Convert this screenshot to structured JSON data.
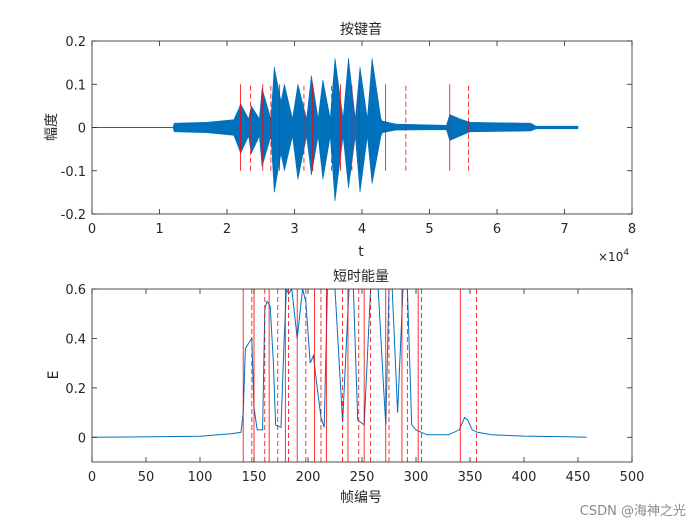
{
  "watermark": "CSDN @海神之光",
  "colors": {
    "signal": "#0072BD",
    "marker": "#FF0000",
    "axis": "#262626"
  },
  "chart_data": [
    {
      "type": "line",
      "title": "按键音",
      "xlabel": "t",
      "ylabel": "幅度",
      "x_exponent_label": "×10",
      "x_exponent_power": "4",
      "xlim": [
        0,
        80000
      ],
      "ylim": [
        -0.2,
        0.2
      ],
      "xticks": [
        0,
        10000,
        20000,
        30000,
        40000,
        50000,
        60000,
        70000,
        80000
      ],
      "xtick_labels": [
        "0",
        "1",
        "2",
        "3",
        "4",
        "5",
        "6",
        "7",
        "8"
      ],
      "yticks": [
        -0.2,
        -0.1,
        0,
        0.1,
        0.2
      ],
      "ytick_labels": [
        "-0.2",
        "-0.1",
        "0",
        "0.1",
        "0.2"
      ],
      "envelope": {
        "x": [
          0,
          12000,
          12200,
          17000,
          21000,
          21800,
          22000,
          23200,
          23600,
          24800,
          25200,
          26500,
          27000,
          28000,
          28500,
          29700,
          30500,
          31800,
          32500,
          33500,
          34200,
          35300,
          36000,
          37200,
          38000,
          39000,
          39700,
          40800,
          41500,
          42800,
          43000,
          45000,
          52500,
          53000,
          54500,
          56000,
          65000,
          65800,
          72000,
          72001
        ],
        "upper": [
          0.0005,
          0.0005,
          0.01,
          0.012,
          0.018,
          0.045,
          0.055,
          0.02,
          0.05,
          0.02,
          0.09,
          0.02,
          0.14,
          0.06,
          0.1,
          0.02,
          0.1,
          0.02,
          0.12,
          0.02,
          0.11,
          0.02,
          0.16,
          0.02,
          0.16,
          0.02,
          0.14,
          0.02,
          0.16,
          0.02,
          0.015,
          0.008,
          0.005,
          0.03,
          0.02,
          0.012,
          0.01,
          0.003,
          0.003,
          0.0
        ],
        "lower": [
          -0.0005,
          -0.0005,
          -0.01,
          -0.012,
          -0.018,
          -0.05,
          -0.06,
          -0.02,
          -0.06,
          -0.02,
          -0.09,
          -0.02,
          -0.15,
          -0.06,
          -0.1,
          -0.02,
          -0.12,
          -0.02,
          -0.11,
          -0.02,
          -0.12,
          -0.02,
          -0.17,
          -0.02,
          -0.14,
          -0.02,
          -0.15,
          -0.02,
          -0.13,
          -0.02,
          -0.012,
          -0.006,
          -0.005,
          -0.03,
          -0.02,
          -0.01,
          -0.008,
          -0.003,
          -0.003,
          0.0
        ]
      },
      "solid_markers_x": [
        22000,
        25300,
        27800,
        32700,
        36800,
        39600,
        43500,
        53000
      ],
      "dashed_markers_x": [
        23500,
        26500,
        31400,
        35500,
        38500,
        41700,
        46500,
        55800
      ],
      "marker_y_range": [
        -0.1,
        0.1
      ]
    },
    {
      "type": "line",
      "title": "短时能量",
      "xlabel": "帧编号",
      "ylabel": "E",
      "xlim": [
        0,
        500
      ],
      "ylim": [
        -0.1,
        0.6
      ],
      "xticks": [
        0,
        50,
        100,
        150,
        200,
        250,
        300,
        350,
        400,
        450,
        500
      ],
      "xtick_labels": [
        "0",
        "50",
        "100",
        "150",
        "200",
        "250",
        "300",
        "350",
        "400",
        "450",
        "500"
      ],
      "yticks": [
        0,
        0.2,
        0.4,
        0.6
      ],
      "ytick_labels": [
        "0",
        "0.2",
        "0.4",
        "0.6"
      ],
      "x": [
        0,
        100,
        130,
        138,
        140,
        142,
        145,
        148,
        150,
        153,
        158,
        160,
        162,
        165,
        168,
        170,
        175,
        178,
        180,
        182,
        185,
        190,
        195,
        198,
        202,
        205,
        208,
        212,
        215,
        218,
        225,
        232,
        238,
        242,
        246,
        252,
        258,
        265,
        270,
        272,
        275,
        278,
        283,
        288,
        292,
        296,
        300,
        305,
        310,
        320,
        330,
        340,
        345,
        348,
        352,
        357,
        370,
        400,
        440,
        458
      ],
      "values": [
        0.0,
        0.004,
        0.015,
        0.02,
        0.1,
        0.36,
        0.38,
        0.4,
        0.12,
        0.03,
        0.03,
        0.52,
        0.55,
        0.53,
        0.3,
        0.05,
        0.04,
        0.4,
        0.6,
        0.58,
        0.6,
        0.4,
        0.6,
        0.55,
        0.3,
        0.33,
        0.22,
        0.08,
        0.04,
        0.6,
        0.6,
        0.06,
        0.6,
        0.6,
        0.07,
        0.05,
        0.6,
        0.6,
        0.2,
        0.05,
        0.6,
        0.6,
        0.1,
        0.6,
        0.6,
        0.05,
        0.03,
        0.02,
        0.01,
        0.01,
        0.01,
        0.03,
        0.08,
        0.07,
        0.03,
        0.02,
        0.01,
        0.005,
        0.002,
        0.0
      ],
      "solid_markers_x": [
        140,
        150,
        164,
        179,
        190,
        206,
        217,
        237,
        252,
        272,
        287,
        302,
        341
      ],
      "dashed_markers_x": [
        148,
        160,
        172,
        182,
        198,
        212,
        232,
        247,
        258,
        275,
        292,
        305,
        356
      ],
      "marker_y_range": [
        -0.1,
        0.6
      ]
    }
  ]
}
